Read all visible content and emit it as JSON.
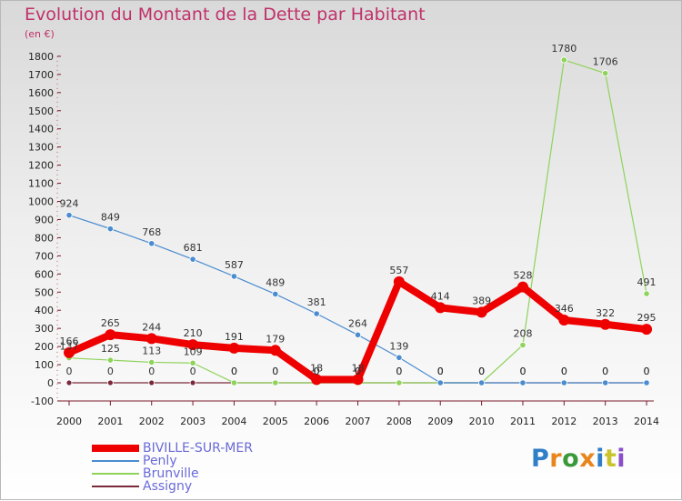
{
  "chart_data": {
    "type": "line",
    "title": "Evolution du Montant de la Dette par Habitant",
    "subtitle": "(en €)",
    "xlabel": "",
    "ylabel": "",
    "x": [
      "2000",
      "2001",
      "2002",
      "2003",
      "2004",
      "2005",
      "2006",
      "2007",
      "2008",
      "2009",
      "2010",
      "2011",
      "2012",
      "2013",
      "2014"
    ],
    "ylim": [
      -100,
      1800
    ],
    "yticks": [
      -100,
      0,
      100,
      200,
      300,
      400,
      500,
      600,
      700,
      800,
      900,
      1000,
      1100,
      1200,
      1300,
      1400,
      1500,
      1600,
      1700,
      1800
    ],
    "grid": false,
    "legend_position": "bottom-left",
    "series": [
      {
        "name": "BIVILLE-SUR-MER",
        "color": "#ee0000",
        "values": [
          166,
          265,
          244,
          210,
          191,
          179,
          18,
          18,
          557,
          414,
          389,
          528,
          346,
          322,
          295
        ]
      },
      {
        "name": "Penly",
        "color": "#4a8ccf",
        "values": [
          924,
          849,
          768,
          681,
          587,
          489,
          381,
          264,
          139,
          0,
          0,
          0,
          0,
          0,
          0
        ]
      },
      {
        "name": "Brunville",
        "color": "#8ed35a",
        "values": [
          137,
          125,
          113,
          109,
          0,
          0,
          0,
          0,
          0,
          0,
          0,
          208,
          1780,
          1706,
          491
        ]
      },
      {
        "name": "Assigny",
        "color": "#7a2a3a",
        "values": [
          0,
          0,
          0,
          0,
          0,
          0,
          0,
          0,
          0,
          0,
          0,
          0,
          0,
          0,
          0
        ]
      }
    ]
  },
  "logo": {
    "letters": [
      "P",
      "r",
      "o",
      "x",
      "i",
      "t",
      "i"
    ],
    "colors": [
      "#2f7fc8",
      "#e8851c",
      "#3a9a3a",
      "#e8851c",
      "#2f7fc8",
      "#c8c42a",
      "#8a4ec8"
    ]
  }
}
